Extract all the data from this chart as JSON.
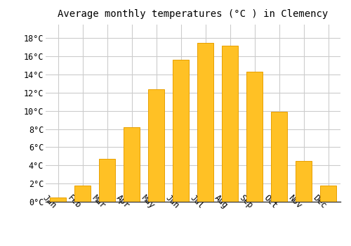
{
  "title": "Average monthly temperatures (°C ) in Clemency",
  "months": [
    "Jan",
    "Feb",
    "Mar",
    "Apr",
    "May",
    "Jun",
    "Jul",
    "Aug",
    "Sep",
    "Oct",
    "Nov",
    "Dec"
  ],
  "values": [
    0.5,
    1.8,
    4.7,
    8.2,
    12.4,
    15.6,
    17.5,
    17.2,
    14.3,
    9.9,
    4.5,
    1.8
  ],
  "bar_color": "#FFC125",
  "bar_edge_color": "#E8A000",
  "background_color": "#FFFFFF",
  "grid_color": "#CCCCCC",
  "ytick_labels": [
    "0°C",
    "2°C",
    "4°C",
    "6°C",
    "8°C",
    "10°C",
    "12°C",
    "14°C",
    "16°C",
    "18°C"
  ],
  "ytick_values": [
    0,
    2,
    4,
    6,
    8,
    10,
    12,
    14,
    16,
    18
  ],
  "ylim": [
    0,
    19.5
  ],
  "title_fontsize": 10,
  "tick_fontsize": 8.5,
  "font_family": "monospace",
  "bar_width": 0.65
}
